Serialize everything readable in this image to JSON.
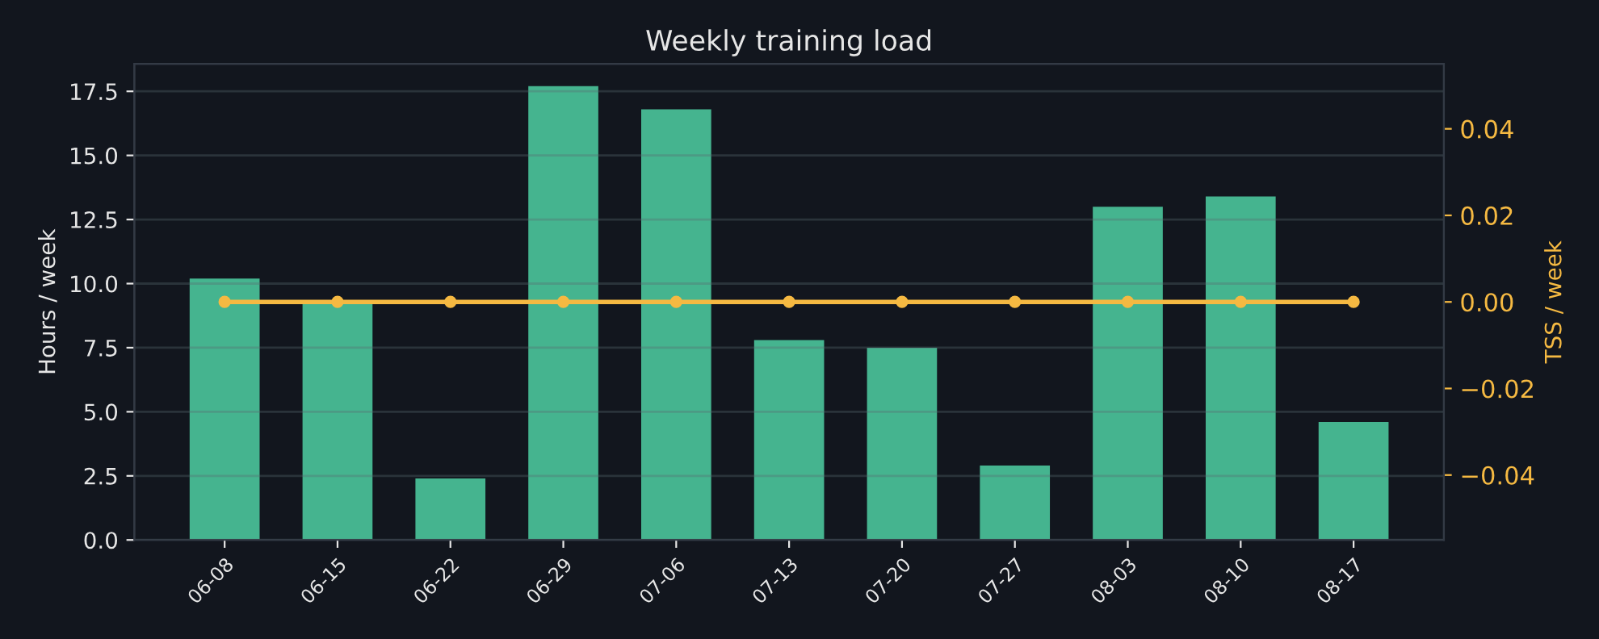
{
  "chart_data": {
    "type": "bar",
    "title": "Weekly training load",
    "ylabel": "Hours / week",
    "y2label": "TSS / week",
    "categories": [
      "06-08",
      "06-15",
      "06-22",
      "06-29",
      "07-06",
      "07-13",
      "07-20",
      "07-27",
      "08-03",
      "08-10",
      "08-17"
    ],
    "series": [
      {
        "color": "#45b48f",
        "values": [
          10.2,
          9.3,
          2.4,
          17.7,
          16.8,
          7.8,
          7.5,
          2.9,
          13.0,
          13.4,
          4.6
        ]
      },
      {
        "type": "line",
        "axis": "y2",
        "color": "#f5b942",
        "marker": "circle",
        "values": [
          0,
          0,
          0,
          0,
          0,
          0,
          0,
          0,
          0,
          0,
          0
        ]
      }
    ],
    "ylim": [
      0,
      18.57
    ],
    "yticks": [
      {
        "value": 0,
        "label": "0.0"
      },
      2.5,
      {
        "value": 5,
        "label": "5.0"
      },
      7.5,
      {
        "value": 10,
        "label": "10.0"
      },
      12.5,
      {
        "value": 15,
        "label": "15.0"
      },
      17.5
    ],
    "y2lim": [
      -0.055,
      0.055
    ],
    "y2ticks": [
      {
        "value": -0.04,
        "label": "−0.04"
      },
      {
        "value": -0.02,
        "label": "−0.02"
      },
      {
        "value": 0,
        "label": "0.00"
      },
      0.02,
      0.04
    ],
    "grid": "y",
    "legend": false
  }
}
